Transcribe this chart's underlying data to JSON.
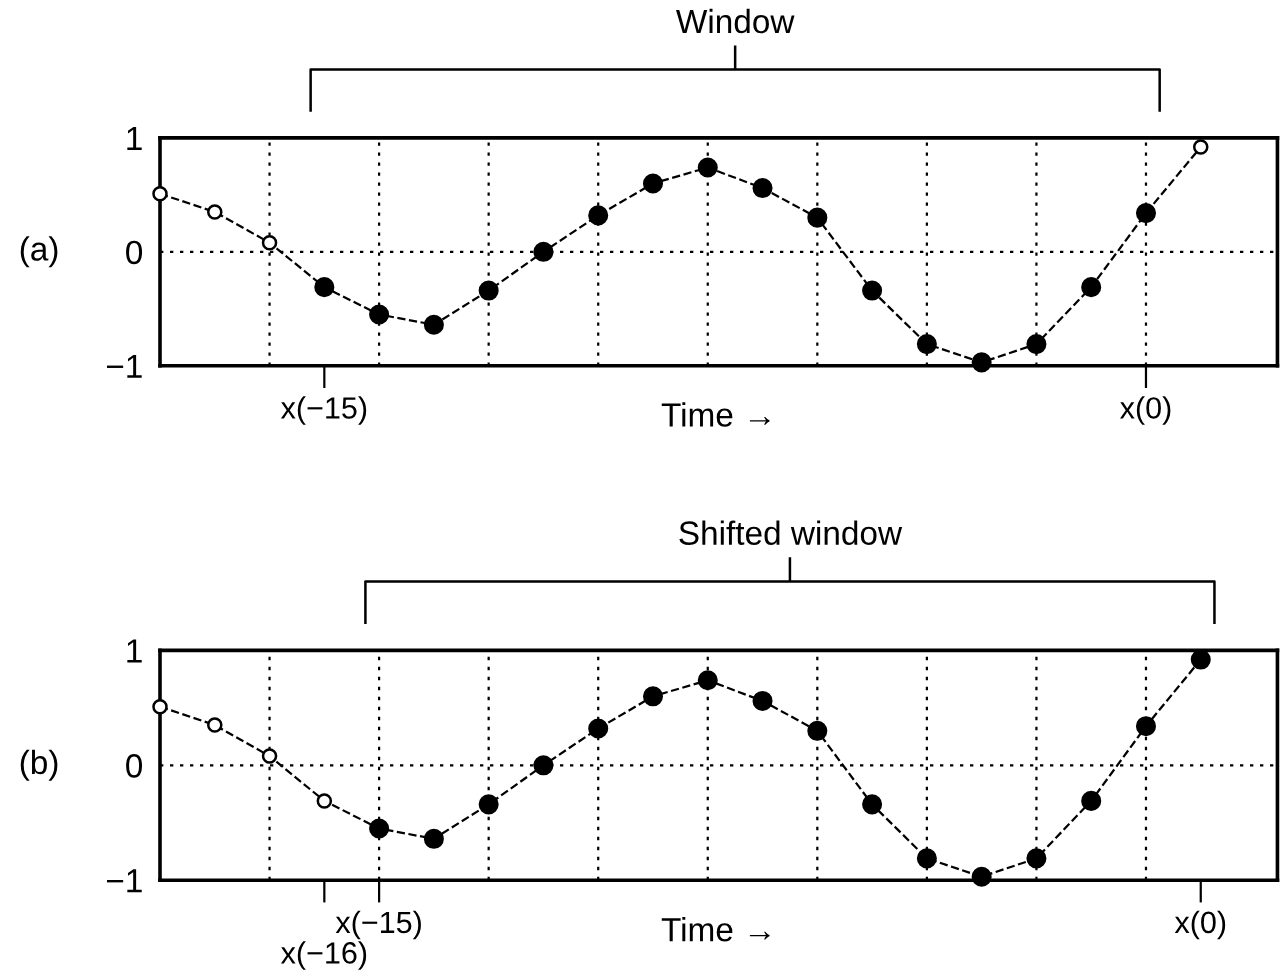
{
  "chart_data": [
    {
      "type": "line",
      "xlabel": "Time →",
      "annotations": [
        "(a)",
        "Window"
      ],
      "categories": [
        null,
        null,
        null,
        "x(−15)",
        null,
        null,
        null,
        null,
        null,
        null,
        null,
        null,
        null,
        null,
        null,
        null,
        null,
        null,
        "x(0)",
        null
      ],
      "series": [
        {
          "color": "#000000",
          "colors": [
            "#ffffff",
            "#ffffff",
            "#ffffff",
            "#000000",
            "#000000",
            "#000000",
            "#000000",
            "#000000",
            "#000000",
            "#000000",
            "#000000",
            "#000000",
            "#000000",
            "#000000",
            "#000000",
            "#000000",
            "#000000",
            "#000000",
            "#000000",
            "#ffffff"
          ],
          "values": [
            0.51,
            0.35,
            0.08,
            -0.31,
            -0.55,
            -0.64,
            -0.34,
            0.0,
            0.32,
            0.6,
            0.74,
            0.56,
            0.3,
            -0.34,
            -0.81,
            -0.97,
            -0.81,
            -0.31,
            0.34,
            0.92
          ]
        }
      ],
      "marker": "circle",
      "line_style": "dashed",
      "ylim": [
        -1,
        1
      ],
      "yticks": [
        {
          "value": -1,
          "label": "−1"
        },
        0,
        1
      ],
      "grid": true
    },
    {
      "type": "line",
      "xlabel": "Time →",
      "annotations": [
        "(b)",
        "Shifted window"
      ],
      "categories": [
        null,
        null,
        null,
        "x(−16)",
        "x(−15)",
        null,
        null,
        null,
        null,
        null,
        null,
        null,
        null,
        null,
        null,
        null,
        null,
        null,
        null,
        "x(0)"
      ],
      "series": [
        {
          "color": "#000000",
          "colors": [
            "#ffffff",
            "#ffffff",
            "#ffffff",
            "#ffffff",
            "#000000",
            "#000000",
            "#000000",
            "#000000",
            "#000000",
            "#000000",
            "#000000",
            "#000000",
            "#000000",
            "#000000",
            "#000000",
            "#000000",
            "#000000",
            "#000000",
            "#000000",
            "#000000"
          ],
          "values": [
            0.51,
            0.35,
            0.08,
            -0.31,
            -0.55,
            -0.64,
            -0.34,
            0.0,
            0.32,
            0.6,
            0.74,
            0.56,
            0.3,
            -0.34,
            -0.81,
            -0.97,
            -0.81,
            -0.31,
            0.34,
            0.92
          ]
        }
      ],
      "marker": "circle",
      "line_style": "dashed",
      "ylim": [
        -1,
        1
      ],
      "yticks": [
        {
          "value": -1,
          "label": "−1"
        },
        0,
        1
      ],
      "grid": true
    }
  ]
}
